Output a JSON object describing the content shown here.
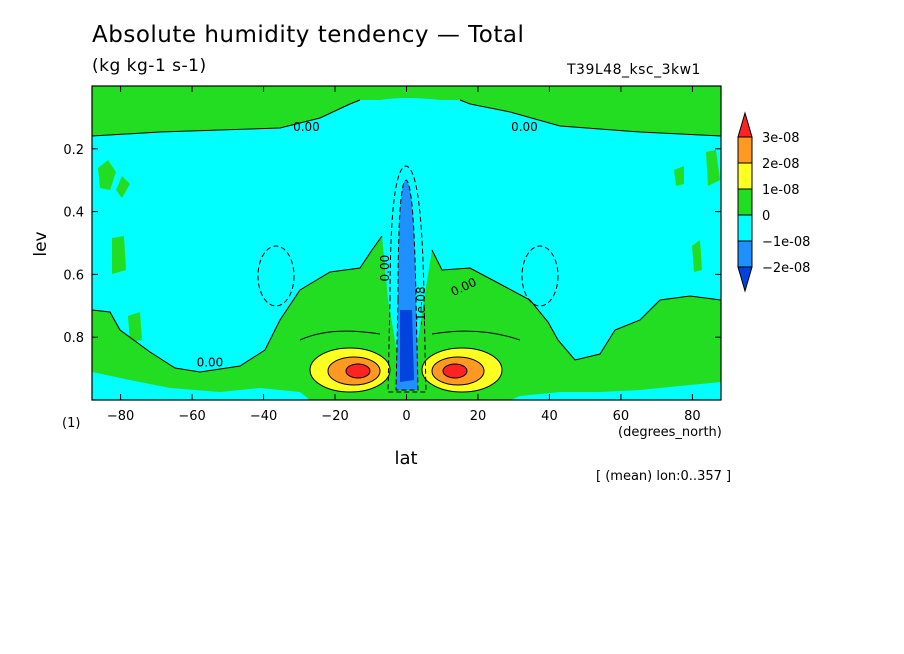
{
  "chart_data": {
    "type": "contour",
    "title": "Absolute humidity tendency — Total",
    "units": "(kg kg-1 s-1)",
    "run_id": "T39L48_ksc_3kw1",
    "xlabel": "lat",
    "xunits": "(degrees_north)",
    "ylabel": "lev",
    "panel_mark": "(1)",
    "footnote": "[ (mean) lon:0..357 ]",
    "xlim": [
      -88,
      88
    ],
    "ylim": [
      0.0,
      1.0
    ],
    "y_inverted": true,
    "x_ticks": [
      -80,
      -60,
      -40,
      -20,
      0,
      20,
      40,
      60,
      80
    ],
    "y_ticks": [
      0.2,
      0.4,
      0.6,
      0.8
    ],
    "contour_labels": [
      "0.00",
      "0.00",
      "0.00",
      "0.00",
      "0.00",
      "-1e-08"
    ],
    "colorbar": {
      "labels": [
        "3e-08",
        "2e-08",
        "1e-08",
        "0",
        "-1e-08",
        "-2e-08"
      ],
      "colors": [
        "#ff2222",
        "#ff9922",
        "#ffff22",
        "#22dd22",
        "#00ffff",
        "#1e90ff",
        "#0044dd"
      ]
    }
  }
}
